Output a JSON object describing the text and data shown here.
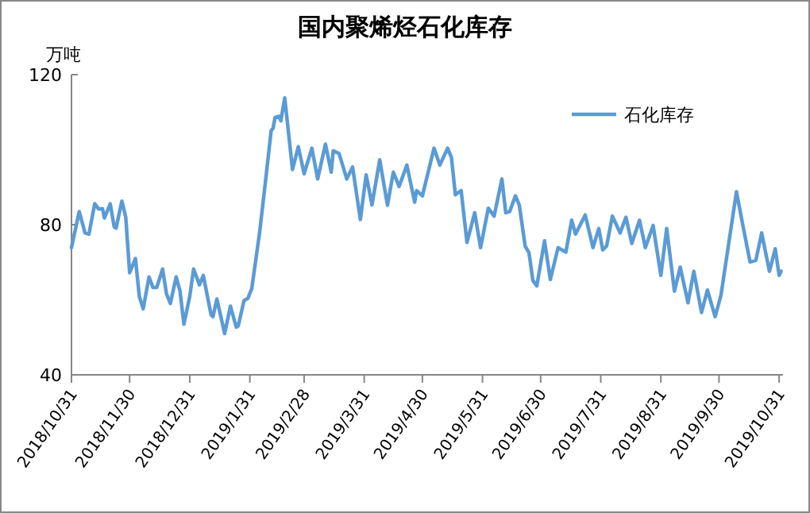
{
  "chart_data": {
    "type": "line",
    "title": "国内聚烯烃石化库存",
    "ylabel": "万吨",
    "xlim": [
      "2018-10-31",
      "2019-11-02"
    ],
    "xticks": [
      {
        "value": "2018-10-31",
        "label": "2018/10/31"
      },
      {
        "value": "2018-11-30",
        "label": "2018/11/30"
      },
      {
        "value": "2018-12-31",
        "label": "2018/12/31"
      },
      {
        "value": "2019-01-31",
        "label": "2019/1/31"
      },
      {
        "value": "2019-02-28",
        "label": "2019/2/28"
      },
      {
        "value": "2019-03-31",
        "label": "2019/3/31"
      },
      {
        "value": "2019-04-30",
        "label": "2019/4/30"
      },
      {
        "value": "2019-05-31",
        "label": "2019/5/31"
      },
      {
        "value": "2019-06-30",
        "label": "2019/6/30"
      },
      {
        "value": "2019-07-31",
        "label": "2019/7/31"
      },
      {
        "value": "2019-08-31",
        "label": "2019/8/31"
      },
      {
        "value": "2019-09-30",
        "label": "2019/9/30"
      },
      {
        "value": "2019-10-31",
        "label": "2019/10/31"
      }
    ],
    "ylim": [
      40,
      120
    ],
    "yticks": [
      40,
      80,
      120
    ],
    "legend": "top right",
    "grid": false,
    "marker": "none",
    "line_style": "solid",
    "x": [
      "2018-10-31",
      "2018-11-04",
      "2018-11-07",
      "2018-11-09",
      "2018-11-12",
      "2018-11-14",
      "2018-11-16",
      "2018-11-17",
      "2018-11-20",
      "2018-11-22",
      "2018-11-23",
      "2018-11-26",
      "2018-11-28",
      "2018-11-30",
      "2018-12-03",
      "2018-12-05",
      "2018-12-07",
      "2018-12-10",
      "2018-12-12",
      "2018-12-14",
      "2018-12-17",
      "2018-12-19",
      "2018-12-21",
      "2018-12-24",
      "2018-12-26",
      "2018-12-28",
      "2018-12-31",
      "2019-01-02",
      "2019-01-05",
      "2019-01-07",
      "2019-01-11",
      "2019-01-12",
      "2019-01-14",
      "2019-01-18",
      "2019-01-21",
      "2019-01-24",
      "2019-01-25",
      "2019-01-28",
      "2019-01-30",
      "2019-02-01",
      "2019-02-05",
      "2019-02-08",
      "2019-02-11",
      "2019-02-12",
      "2019-02-13",
      "2019-02-15",
      "2019-02-16",
      "2019-02-18",
      "2019-02-22",
      "2019-02-25",
      "2019-02-28",
      "2019-03-04",
      "2019-03-07",
      "2019-03-11",
      "2019-03-14",
      "2019-03-15",
      "2019-03-18",
      "2019-03-22",
      "2019-03-25",
      "2019-03-29",
      "2019-04-01",
      "2019-04-04",
      "2019-04-08",
      "2019-04-12",
      "2019-04-15",
      "2019-04-18",
      "2019-04-22",
      "2019-04-26",
      "2019-04-27",
      "2019-04-30",
      "2019-05-06",
      "2019-05-09",
      "2019-05-13",
      "2019-05-15",
      "2019-05-17",
      "2019-05-20",
      "2019-05-23",
      "2019-05-27",
      "2019-05-30",
      "2019-06-03",
      "2019-06-06",
      "2019-06-10",
      "2019-06-12",
      "2019-06-14",
      "2019-06-17",
      "2019-06-19",
      "2019-06-22",
      "2019-06-24",
      "2019-06-26",
      "2019-06-28",
      "2019-07-02",
      "2019-07-05",
      "2019-07-09",
      "2019-07-13",
      "2019-07-16",
      "2019-07-18",
      "2019-07-23",
      "2019-07-27",
      "2019-07-30",
      "2019-08-01",
      "2019-08-03",
      "2019-08-06",
      "2019-08-10",
      "2019-08-13",
      "2019-08-16",
      "2019-08-20",
      "2019-08-23",
      "2019-08-27",
      "2019-08-31",
      "2019-09-03",
      "2019-09-07",
      "2019-09-10",
      "2019-09-14",
      "2019-09-17",
      "2019-09-21",
      "2019-09-24",
      "2019-09-28",
      "2019-10-01",
      "2019-10-09",
      "2019-10-12",
      "2019-10-16",
      "2019-10-19",
      "2019-10-22",
      "2019-10-26",
      "2019-10-29",
      "2019-10-31",
      "2019-11-01"
    ],
    "series": [
      {
        "name": "石化库存",
        "color": "#5b9bd5",
        "values": [
          73.9,
          83.5,
          77.8,
          77.5,
          85.6,
          84.2,
          84.3,
          81.8,
          85.6,
          79.5,
          79.1,
          86.3,
          82,
          67.2,
          71,
          60.9,
          57.6,
          66.1,
          63.3,
          63.3,
          68.2,
          61.6,
          59,
          66.1,
          62.3,
          53.5,
          60.9,
          68.2,
          64,
          66.5,
          56,
          55.5,
          60.2,
          51,
          58.3,
          52.7,
          53,
          59.8,
          60.4,
          63,
          77.8,
          91.2,
          105.1,
          105.7,
          108.6,
          108.9,
          107.7,
          113.8,
          94.7,
          100.8,
          93.6,
          100.4,
          92.2,
          101.5,
          94,
          99.7,
          99,
          92.2,
          95.4,
          81.4,
          93.3,
          85.3,
          97.3,
          85.2,
          94,
          90.2,
          95.9,
          86,
          89.1,
          87.7,
          100.4,
          95.9,
          100.4,
          97.9,
          88,
          89.1,
          75.3,
          83.2,
          73.9,
          84.4,
          82.3,
          92.2,
          83.2,
          83.5,
          87.7,
          85.2,
          74.3,
          72.5,
          65.1,
          63.7,
          75.7,
          65.4,
          73.9,
          72.7,
          81.2,
          77.5,
          82.6,
          73.9,
          79,
          73.3,
          74.3,
          82.3,
          77.8,
          82,
          75,
          81.2,
          73.9,
          79.8,
          66.5,
          79,
          62.3,
          68.7,
          59.2,
          67.6,
          56.6,
          62.6,
          55.5,
          61.2,
          88.8,
          80.6,
          70.1,
          70.5,
          77.8,
          67.6,
          73.6,
          66.5,
          67.6
        ]
      }
    ]
  }
}
